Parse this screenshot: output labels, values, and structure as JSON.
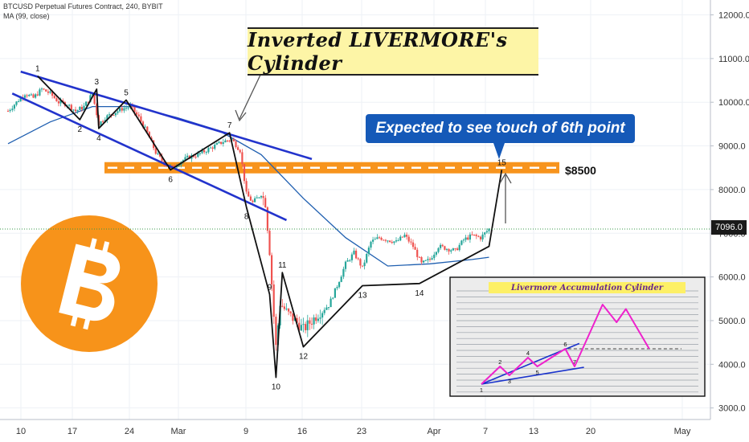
{
  "header": {
    "symbol": "BTCUSD Perpetual Futures Contract, 240, BYBIT",
    "indicator": "MA (99, close)"
  },
  "annotations": {
    "title": "Inverted LIVERMORE's Cylinder",
    "callout": "Expected to see touch of 6th point",
    "level_label": "$8500",
    "inset_title": "Livermore Accumulation Cylinder"
  },
  "price_tag": "7096.0",
  "colors": {
    "candle_up": "#26a69a",
    "candle_down": "#ef5350",
    "channel": "#2233cc",
    "moving_average": "#1f5fb0",
    "level_band": "#f7941d",
    "bitcoin": "#f7931a",
    "callout": "#1559b8",
    "inset_path": "#ee22cc"
  },
  "chart_data": [
    {
      "type": "line",
      "title": "BTCUSD Perpetual Futures Contract, 240, BYBIT",
      "x_ticks": [
        "10",
        "17",
        "24",
        "Mar",
        "9",
        "16",
        "23",
        "Apr",
        "7",
        "13",
        "20",
        "May"
      ],
      "y_ticks": [
        "3000.0",
        "4000.0",
        "5000.0",
        "6000.0",
        "7000.0",
        "8000.0",
        "9000.0",
        "10000.0",
        "11000.0",
        "12000.0"
      ],
      "ylim": [
        2750,
        12300
      ],
      "last_price": 7096.0,
      "resistance_level": 8500,
      "wave_points": [
        {
          "label": "1",
          "x": 7.0,
          "y": 10600
        },
        {
          "label": "2",
          "x": 17.0,
          "y": 9600
        },
        {
          "label": "3",
          "x": 21.0,
          "y": 10300
        },
        {
          "label": "4",
          "x": 21.5,
          "y": 9400
        },
        {
          "label": "5",
          "x": 28.0,
          "y": 10050
        },
        {
          "label": "6",
          "x": 38.5,
          "y": 8450
        },
        {
          "label": "7",
          "x": 52.5,
          "y": 9300
        },
        {
          "label": "8",
          "x": 56.5,
          "y": 7600
        },
        {
          "label": "9",
          "x": 62.0,
          "y": 5600
        },
        {
          "label": "10",
          "x": 63.5,
          "y": 3700
        },
        {
          "label": "11",
          "x": 65.0,
          "y": 6100
        },
        {
          "label": "12",
          "x": 70.0,
          "y": 4400
        },
        {
          "label": "13",
          "x": 84.0,
          "y": 5800
        },
        {
          "label": "14",
          "x": 97.5,
          "y": 5850
        },
        {
          "label": "",
          "x": 114.0,
          "y": 6700
        },
        {
          "label": "15",
          "x": 117.0,
          "y": 8450
        }
      ],
      "channel_lines": [
        {
          "from": [
            3.0,
            10700
          ],
          "to": [
            72.0,
            8700
          ]
        },
        {
          "from": [
            1.0,
            10200
          ],
          "to": [
            66.0,
            7300
          ]
        }
      ],
      "moving_average": [
        {
          "x": 0,
          "y": 9050
        },
        {
          "x": 10,
          "y": 9550
        },
        {
          "x": 20,
          "y": 9900
        },
        {
          "x": 30,
          "y": 9900
        },
        {
          "x": 40,
          "y": 9650
        },
        {
          "x": 50,
          "y": 9350
        },
        {
          "x": 60,
          "y": 8800
        },
        {
          "x": 70,
          "y": 7800
        },
        {
          "x": 80,
          "y": 6900
        },
        {
          "x": 90,
          "y": 6250
        },
        {
          "x": 100,
          "y": 6300
        },
        {
          "x": 110,
          "y": 6400
        },
        {
          "x": 114,
          "y": 6450
        }
      ],
      "price_path": [
        {
          "x": 0,
          "y": 9800
        },
        {
          "x": 2,
          "y": 10000
        },
        {
          "x": 4,
          "y": 10200
        },
        {
          "x": 6,
          "y": 10100
        },
        {
          "x": 8,
          "y": 10300
        },
        {
          "x": 10,
          "y": 10200
        },
        {
          "x": 12,
          "y": 10000
        },
        {
          "x": 14,
          "y": 9950
        },
        {
          "x": 16,
          "y": 9800
        },
        {
          "x": 18,
          "y": 9900
        },
        {
          "x": 20,
          "y": 10200
        },
        {
          "x": 21.5,
          "y": 9500
        },
        {
          "x": 23,
          "y": 9650
        },
        {
          "x": 25,
          "y": 9750
        },
        {
          "x": 27,
          "y": 9850
        },
        {
          "x": 29,
          "y": 9900
        },
        {
          "x": 31,
          "y": 9650
        },
        {
          "x": 33,
          "y": 9300
        },
        {
          "x": 35,
          "y": 8850
        },
        {
          "x": 37,
          "y": 8600
        },
        {
          "x": 39,
          "y": 8500
        },
        {
          "x": 41,
          "y": 8650
        },
        {
          "x": 43,
          "y": 8750
        },
        {
          "x": 45,
          "y": 8800
        },
        {
          "x": 47,
          "y": 8900
        },
        {
          "x": 49,
          "y": 9000
        },
        {
          "x": 51,
          "y": 9100
        },
        {
          "x": 53,
          "y": 9150
        },
        {
          "x": 55,
          "y": 8900
        },
        {
          "x": 56.5,
          "y": 7900
        },
        {
          "x": 58,
          "y": 7700
        },
        {
          "x": 60,
          "y": 7900
        },
        {
          "x": 61,
          "y": 7700
        },
        {
          "x": 62,
          "y": 6600
        },
        {
          "x": 63,
          "y": 5100
        },
        {
          "x": 63.5,
          "y": 4400
        },
        {
          "x": 64.5,
          "y": 5400
        },
        {
          "x": 66,
          "y": 5200
        },
        {
          "x": 68,
          "y": 5000
        },
        {
          "x": 70,
          "y": 4800
        },
        {
          "x": 72,
          "y": 5000
        },
        {
          "x": 74,
          "y": 5200
        },
        {
          "x": 76,
          "y": 5350
        },
        {
          "x": 78,
          "y": 5800
        },
        {
          "x": 80,
          "y": 6300
        },
        {
          "x": 82,
          "y": 6550
        },
        {
          "x": 84,
          "y": 6200
        },
        {
          "x": 86,
          "y": 6800
        },
        {
          "x": 88,
          "y": 6900
        },
        {
          "x": 90,
          "y": 6850
        },
        {
          "x": 92,
          "y": 6800
        },
        {
          "x": 94,
          "y": 6950
        },
        {
          "x": 96,
          "y": 6700
        },
        {
          "x": 98,
          "y": 6300
        },
        {
          "x": 100,
          "y": 6400
        },
        {
          "x": 102,
          "y": 6700
        },
        {
          "x": 104,
          "y": 6650
        },
        {
          "x": 106,
          "y": 6600
        },
        {
          "x": 108,
          "y": 6850
        },
        {
          "x": 110,
          "y": 6950
        },
        {
          "x": 112,
          "y": 6900
        },
        {
          "x": 114,
          "y": 7096
        }
      ]
    },
    {
      "type": "line",
      "title": "Livermore Accumulation Cylinder",
      "points": [
        {
          "label": "1",
          "x": 0,
          "y": 0
        },
        {
          "label": "2",
          "x": 2,
          "y": 2
        },
        {
          "label": "3",
          "x": 3,
          "y": 1
        },
        {
          "label": "4",
          "x": 5,
          "y": 3
        },
        {
          "label": "5",
          "x": 6,
          "y": 2
        },
        {
          "label": "6",
          "x": 9,
          "y": 4
        },
        {
          "label": "7",
          "x": 10,
          "y": 2
        },
        {
          "label": "",
          "x": 13,
          "y": 9
        },
        {
          "label": "",
          "x": 14.5,
          "y": 7
        },
        {
          "label": "",
          "x": 15.5,
          "y": 8.5
        },
        {
          "label": "",
          "x": 18,
          "y": 4
        }
      ]
    }
  ]
}
